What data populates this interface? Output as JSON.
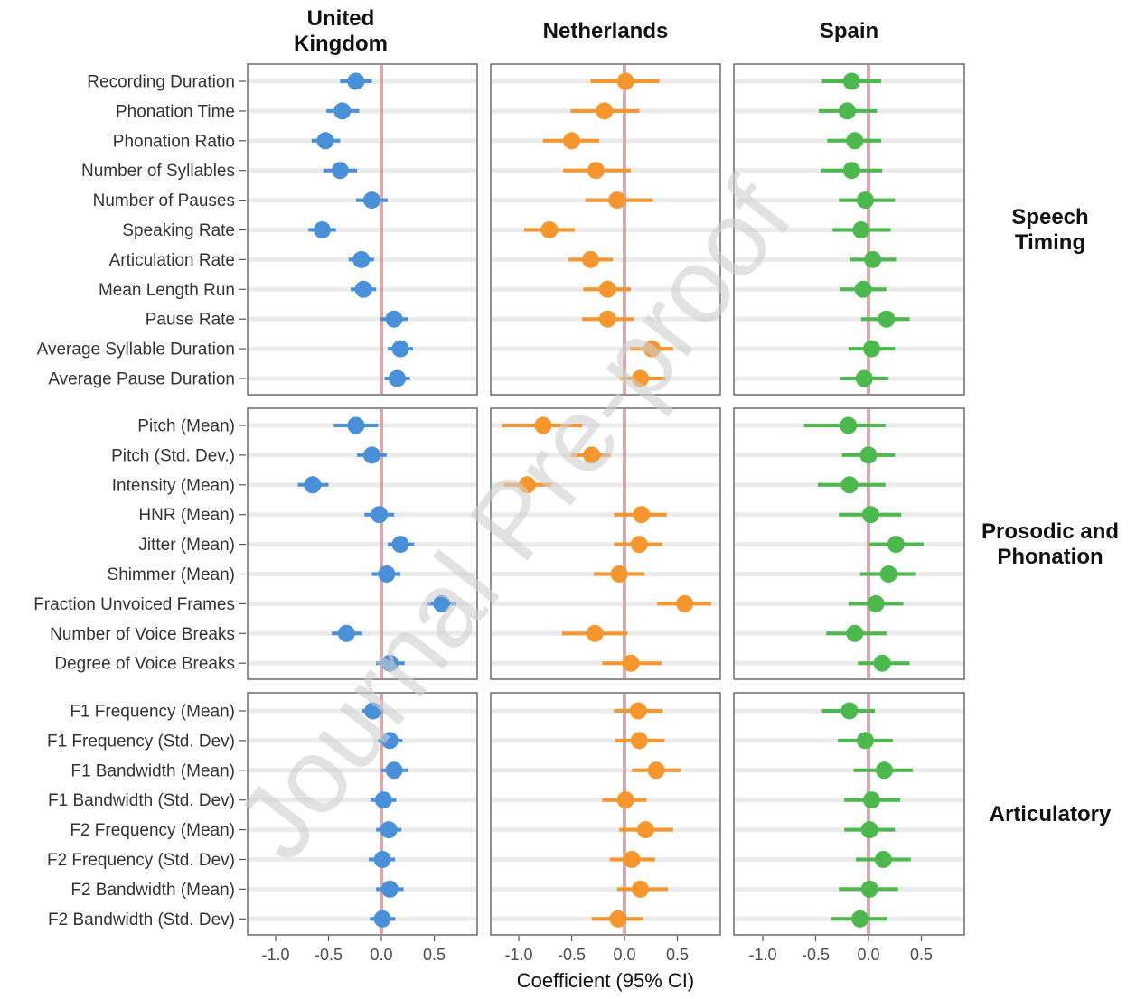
{
  "chart_data": {
    "type": "scatter",
    "subtype": "forest-plot",
    "xlabel": "Coefficient (95% CI)",
    "xlim": [
      -1.3,
      0.9
    ],
    "xticks": [
      -1.0,
      -0.5,
      0.0,
      0.5
    ],
    "xtick_labels": [
      "-1.0",
      "-0.5",
      "0.0",
      "0.5"
    ],
    "reference_line": 0.0,
    "grid": true,
    "watermark": "Journal Pre-proof",
    "columns": [
      {
        "title_lines": [
          "United",
          "Kingdom"
        ],
        "color": "#4a90d9"
      },
      {
        "title_lines": [
          "Netherlands"
        ],
        "color": "#f5962f"
      },
      {
        "title_lines": [
          "Spain"
        ],
        "color": "#4cb84e"
      }
    ],
    "groups": [
      {
        "label_lines": [
          "Speech",
          "Timing"
        ],
        "rows": [
          {
            "label": "Recording Duration",
            "values": [
              {
                "est": -0.24,
                "lo": -0.39,
                "hi": -0.09
              },
              {
                "est": 0.01,
                "lo": -0.32,
                "hi": 0.33
              },
              {
                "est": -0.16,
                "lo": -0.44,
                "hi": 0.12
              }
            ]
          },
          {
            "label": "Phonation Time",
            "values": [
              {
                "est": -0.37,
                "lo": -0.52,
                "hi": -0.21
              },
              {
                "est": -0.19,
                "lo": -0.51,
                "hi": 0.14
              },
              {
                "est": -0.2,
                "lo": -0.47,
                "hi": 0.08
              }
            ]
          },
          {
            "label": "Phonation Ratio",
            "values": [
              {
                "est": -0.53,
                "lo": -0.66,
                "hi": -0.39
              },
              {
                "est": -0.5,
                "lo": -0.77,
                "hi": -0.24
              },
              {
                "est": -0.13,
                "lo": -0.39,
                "hi": 0.12
              }
            ]
          },
          {
            "label": "Number of Syllables",
            "values": [
              {
                "est": -0.39,
                "lo": -0.55,
                "hi": -0.23
              },
              {
                "est": -0.27,
                "lo": -0.58,
                "hi": 0.06
              },
              {
                "est": -0.16,
                "lo": -0.45,
                "hi": 0.13
              }
            ]
          },
          {
            "label": "Number of Pauses",
            "values": [
              {
                "est": -0.09,
                "lo": -0.24,
                "hi": 0.06
              },
              {
                "est": -0.07,
                "lo": -0.37,
                "hi": 0.27
              },
              {
                "est": -0.03,
                "lo": -0.28,
                "hi": 0.25
              }
            ]
          },
          {
            "label": "Speaking Rate",
            "values": [
              {
                "est": -0.56,
                "lo": -0.69,
                "hi": -0.43
              },
              {
                "est": -0.71,
                "lo": -0.95,
                "hi": -0.47
              },
              {
                "est": -0.07,
                "lo": -0.34,
                "hi": 0.21
              }
            ]
          },
          {
            "label": "Articulation Rate",
            "values": [
              {
                "est": -0.19,
                "lo": -0.31,
                "hi": -0.07
              },
              {
                "est": -0.32,
                "lo": -0.53,
                "hi": -0.11
              },
              {
                "est": 0.04,
                "lo": -0.18,
                "hi": 0.26
              }
            ]
          },
          {
            "label": "Mean Length Run",
            "values": [
              {
                "est": -0.17,
                "lo": -0.29,
                "hi": -0.05
              },
              {
                "est": -0.16,
                "lo": -0.39,
                "hi": 0.06
              },
              {
                "est": -0.05,
                "lo": -0.27,
                "hi": 0.17
              }
            ]
          },
          {
            "label": "Pause Rate",
            "values": [
              {
                "est": 0.12,
                "lo": -0.01,
                "hi": 0.25
              },
              {
                "est": -0.16,
                "lo": -0.4,
                "hi": 0.09
              },
              {
                "est": 0.17,
                "lo": -0.07,
                "hi": 0.39
              }
            ]
          },
          {
            "label": "Average Syllable Duration",
            "values": [
              {
                "est": 0.18,
                "lo": 0.06,
                "hi": 0.3
              },
              {
                "est": 0.26,
                "lo": 0.05,
                "hi": 0.46
              },
              {
                "est": 0.03,
                "lo": -0.19,
                "hi": 0.25
              }
            ]
          },
          {
            "label": "Average Pause Duration",
            "values": [
              {
                "est": 0.15,
                "lo": 0.03,
                "hi": 0.27
              },
              {
                "est": 0.15,
                "lo": -0.04,
                "hi": 0.39
              },
              {
                "est": -0.04,
                "lo": -0.27,
                "hi": 0.19
              }
            ]
          }
        ]
      },
      {
        "label_lines": [
          "Prosodic and",
          "Phonation"
        ],
        "rows": [
          {
            "label": "Pitch (Mean)",
            "values": [
              {
                "est": -0.24,
                "lo": -0.45,
                "hi": -0.03
              },
              {
                "est": -0.77,
                "lo": -1.16,
                "hi": -0.4
              },
              {
                "est": -0.19,
                "lo": -0.61,
                "hi": 0.16
              }
            ]
          },
          {
            "label": "Pitch (Std. Dev.)",
            "values": [
              {
                "est": -0.09,
                "lo": -0.23,
                "hi": 0.05
              },
              {
                "est": -0.31,
                "lo": -0.5,
                "hi": -0.13
              },
              {
                "est": 0.0,
                "lo": -0.25,
                "hi": 0.25
              }
            ]
          },
          {
            "label": "Intensity (Mean)",
            "values": [
              {
                "est": -0.65,
                "lo": -0.79,
                "hi": -0.5
              },
              {
                "est": -0.92,
                "lo": -1.14,
                "hi": -0.69
              },
              {
                "est": -0.18,
                "lo": -0.48,
                "hi": 0.16
              }
            ]
          },
          {
            "label": "HNR (Mean)",
            "values": [
              {
                "est": -0.02,
                "lo": -0.16,
                "hi": 0.12
              },
              {
                "est": 0.16,
                "lo": -0.1,
                "hi": 0.4
              },
              {
                "est": 0.02,
                "lo": -0.28,
                "hi": 0.31
              }
            ]
          },
          {
            "label": "Jitter (Mean)",
            "values": [
              {
                "est": 0.18,
                "lo": 0.06,
                "hi": 0.31
              },
              {
                "est": 0.14,
                "lo": -0.1,
                "hi": 0.36
              },
              {
                "est": 0.26,
                "lo": 0.01,
                "hi": 0.52
              }
            ]
          },
          {
            "label": "Shimmer (Mean)",
            "values": [
              {
                "est": 0.05,
                "lo": -0.09,
                "hi": 0.18
              },
              {
                "est": -0.05,
                "lo": -0.29,
                "hi": 0.19
              },
              {
                "est": 0.19,
                "lo": -0.08,
                "hi": 0.45
              }
            ]
          },
          {
            "label": "Fraction Unvoiced Frames",
            "values": [
              {
                "est": 0.57,
                "lo": 0.43,
                "hi": 0.71
              },
              {
                "est": 0.57,
                "lo": 0.31,
                "hi": 0.82
              },
              {
                "est": 0.07,
                "lo": -0.19,
                "hi": 0.33
              }
            ]
          },
          {
            "label": "Number of Voice Breaks",
            "values": [
              {
                "est": -0.33,
                "lo": -0.47,
                "hi": -0.18
              },
              {
                "est": -0.28,
                "lo": -0.59,
                "hi": 0.03
              },
              {
                "est": -0.13,
                "lo": -0.4,
                "hi": 0.17
              }
            ]
          },
          {
            "label": "Degree of Voice Breaks",
            "values": [
              {
                "est": 0.08,
                "lo": -0.05,
                "hi": 0.22
              },
              {
                "est": 0.06,
                "lo": -0.21,
                "hi": 0.35
              },
              {
                "est": 0.13,
                "lo": -0.1,
                "hi": 0.39
              }
            ]
          }
        ]
      },
      {
        "label_lines": [
          "Articulatory"
        ],
        "rows": [
          {
            "label": "F1 Frequency (Mean)",
            "values": [
              {
                "est": -0.08,
                "lo": -0.18,
                "hi": 0.02
              },
              {
                "est": 0.13,
                "lo": -0.1,
                "hi": 0.36
              },
              {
                "est": -0.18,
                "lo": -0.44,
                "hi": 0.06
              }
            ]
          },
          {
            "label": "F1 Frequency (Std. Dev)",
            "values": [
              {
                "est": 0.08,
                "lo": -0.03,
                "hi": 0.2
              },
              {
                "est": 0.14,
                "lo": -0.09,
                "hi": 0.38
              },
              {
                "est": -0.03,
                "lo": -0.29,
                "hi": 0.23
              }
            ]
          },
          {
            "label": "F1 Bandwidth (Mean)",
            "values": [
              {
                "est": 0.12,
                "lo": 0.0,
                "hi": 0.25
              },
              {
                "est": 0.3,
                "lo": 0.07,
                "hi": 0.53
              },
              {
                "est": 0.15,
                "lo": -0.14,
                "hi": 0.42
              }
            ]
          },
          {
            "label": "F1 Bandwidth (Std. Dev)",
            "values": [
              {
                "est": 0.02,
                "lo": -0.1,
                "hi": 0.14
              },
              {
                "est": 0.01,
                "lo": -0.21,
                "hi": 0.21
              },
              {
                "est": 0.03,
                "lo": -0.23,
                "hi": 0.3
              }
            ]
          },
          {
            "label": "F2 Frequency (Mean)",
            "values": [
              {
                "est": 0.07,
                "lo": -0.05,
                "hi": 0.19
              },
              {
                "est": 0.2,
                "lo": -0.05,
                "hi": 0.46
              },
              {
                "est": 0.01,
                "lo": -0.23,
                "hi": 0.25
              }
            ]
          },
          {
            "label": "F2 Frequency (Std. Dev)",
            "values": [
              {
                "est": 0.01,
                "lo": -0.12,
                "hi": 0.13
              },
              {
                "est": 0.07,
                "lo": -0.14,
                "hi": 0.29
              },
              {
                "est": 0.14,
                "lo": -0.12,
                "hi": 0.4
              }
            ]
          },
          {
            "label": "F2 Bandwidth (Mean)",
            "values": [
              {
                "est": 0.08,
                "lo": -0.05,
                "hi": 0.21
              },
              {
                "est": 0.15,
                "lo": -0.07,
                "hi": 0.41
              },
              {
                "est": 0.01,
                "lo": -0.28,
                "hi": 0.28
              }
            ]
          },
          {
            "label": "F2 Bandwidth (Std. Dev)",
            "values": [
              {
                "est": 0.01,
                "lo": -0.11,
                "hi": 0.13
              },
              {
                "est": -0.06,
                "lo": -0.31,
                "hi": 0.18
              },
              {
                "est": -0.08,
                "lo": -0.35,
                "hi": 0.18
              }
            ]
          }
        ]
      }
    ]
  }
}
